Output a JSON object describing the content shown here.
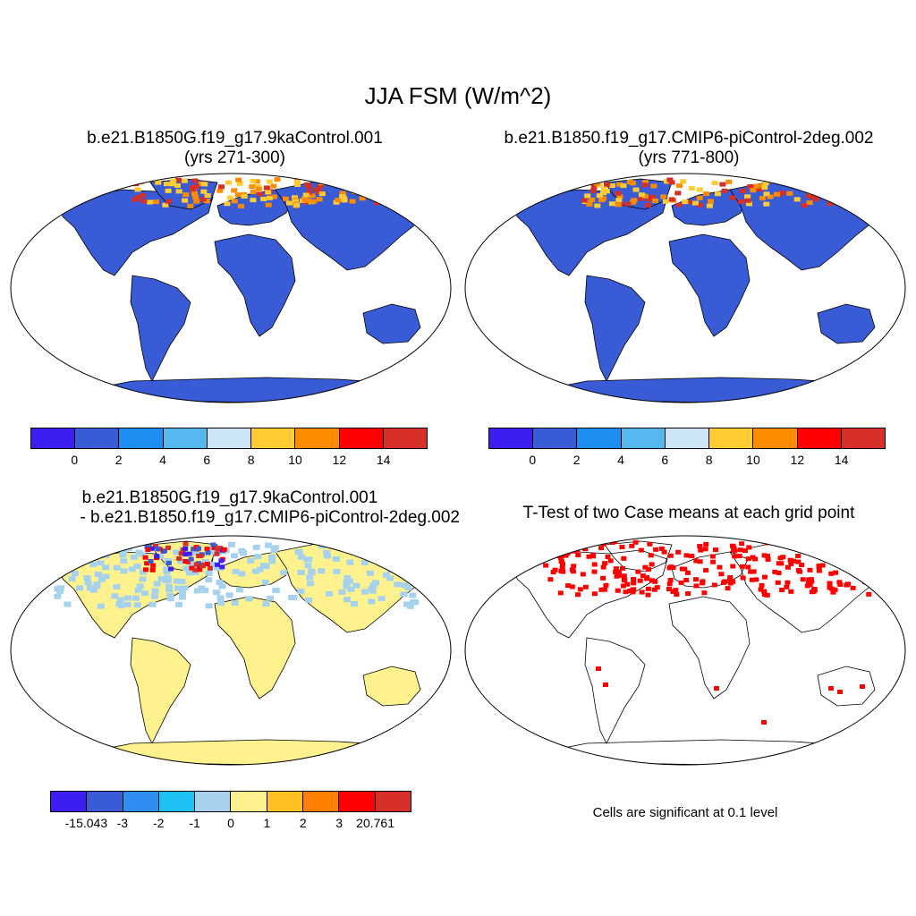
{
  "figure": {
    "title": "JJA FSM (W/m^2)"
  },
  "panels": [
    {
      "id": "case1",
      "title_line1": "b.e21.B1850G.f19_g17.9kaControl.001",
      "title_line2": "(yrs 271-300)",
      "land_color": "#3a5bd6",
      "arctic_highlight": [
        "#d62f27",
        "#ffcc33",
        "#ff8c00"
      ]
    },
    {
      "id": "case2",
      "title_line1": "b.e21.B1850.f19_g17.CMIP6-piControl-2deg.002",
      "title_line2": "(yrs 771-800)",
      "land_color": "#3a5bd6",
      "arctic_highlight": [
        "#d62f27",
        "#ffcc33",
        "#ff8c00"
      ]
    },
    {
      "id": "diff",
      "title_line1": "b.e21.B1850G.f19_g17.9kaControl.001",
      "title_line2": "- b.e21.B1850.f19_g17.CMIP6-piControl-2deg.002",
      "land_color": "#fdf28e",
      "secondary_color": "#a6d2ee"
    },
    {
      "id": "ttest",
      "title_line1": "T-Test of two Case means at each grid point",
      "note": "Cells are significant at 0.1 level",
      "sig_color": "#ff0000"
    }
  ],
  "colorbars": {
    "top": {
      "colors": [
        "#3c1ef0",
        "#3a5bd6",
        "#1e8ff0",
        "#55b8ee",
        "#cce6f7",
        "#ffcc33",
        "#ff8c00",
        "#ff0000",
        "#d62f27"
      ],
      "labels": [
        "0",
        "2",
        "4",
        "6",
        "8",
        "10",
        "12",
        "14"
      ]
    },
    "bottom": {
      "colors": [
        "#3c1ef0",
        "#3a5bd6",
        "#2e8ff0",
        "#1ec0f5",
        "#a6d2ee",
        "#fdf28e",
        "#ffc021",
        "#ff8000",
        "#ff0000",
        "#d62f27"
      ],
      "labels": [
        "-15.043",
        "-3",
        "-2",
        "-1",
        "0",
        "1",
        "2",
        "3",
        "20.761"
      ]
    }
  }
}
